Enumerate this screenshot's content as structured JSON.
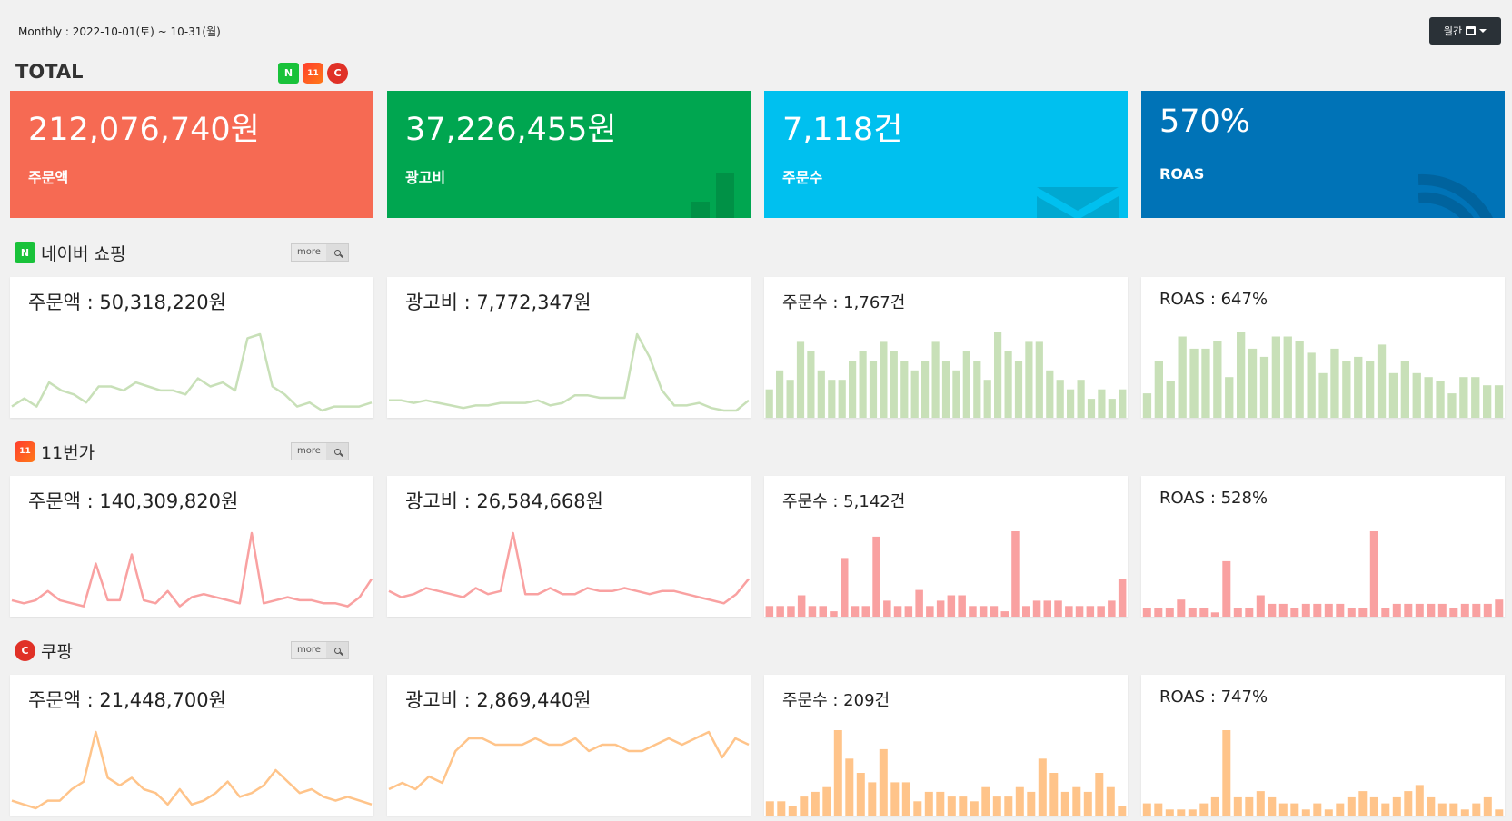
{
  "header": {
    "period": "Monthly : 2022-10-01(토) ~ 10-31(월)",
    "period_button": "월간"
  },
  "total": {
    "title": "TOTAL",
    "channel_badges": [
      "N",
      "11",
      "C"
    ],
    "kpis": [
      {
        "value": "212,076,740원",
        "label": "주문액",
        "color": "#f66a53",
        "icon": "users-icon"
      },
      {
        "value": "37,226,455원",
        "label": "광고비",
        "color": "#00a650",
        "icon": "bar-chart-icon"
      },
      {
        "value": "7,118건",
        "label": "주문수",
        "color": "#00c0ef",
        "icon": "envelope-icon"
      },
      {
        "value": "570%",
        "label": "ROAS",
        "color": "#0073b7",
        "icon": "rss-icon"
      }
    ]
  },
  "more_label": "more",
  "channels": [
    {
      "name": "네이버 쇼핑",
      "badge": "N",
      "chart_color": "#c8e0b8",
      "cards": [
        {
          "title": "주문액 : 50,318,220원",
          "type": "line",
          "values": [
            1,
            3,
            1,
            7,
            5,
            4,
            2,
            6,
            6,
            5,
            7,
            6,
            5,
            5,
            4,
            8,
            6,
            7,
            5,
            18,
            19,
            6,
            4,
            1,
            2,
            0,
            1,
            1,
            1,
            2
          ]
        },
        {
          "title": "광고비 : 7,772,347원",
          "type": "line",
          "values": [
            4,
            4,
            3,
            4,
            3,
            2,
            1,
            2,
            2,
            3,
            3,
            3,
            4,
            2,
            3,
            6,
            6,
            5,
            5,
            5,
            30,
            21,
            8,
            2,
            2,
            3,
            1,
            0,
            0,
            4
          ]
        },
        {
          "title": "주문수 : 1,767건",
          "type": "bar",
          "values": [
            3,
            5,
            4,
            8,
            7,
            5,
            4,
            4,
            6,
            7,
            6,
            8,
            7,
            6,
            5,
            6,
            8,
            6,
            5,
            7,
            6,
            4,
            9,
            7,
            6,
            8,
            8,
            5,
            4,
            3,
            4,
            2,
            3,
            2,
            3
          ]
        },
        {
          "title": "ROAS : 647%",
          "type": "bar",
          "values": [
            6,
            14,
            9,
            20,
            17,
            17,
            19,
            10,
            21,
            17,
            15,
            20,
            20,
            19,
            16,
            11,
            17,
            14,
            15,
            14,
            18,
            11,
            14,
            11,
            10,
            9,
            6,
            10,
            10,
            8,
            8
          ]
        }
      ]
    },
    {
      "name": "11번가",
      "badge": "11",
      "chart_color": "#f9a1a1",
      "cards": [
        {
          "title": "주문액 : 140,309,820원",
          "type": "line",
          "values": [
            3,
            2,
            3,
            6,
            3,
            2,
            1,
            15,
            3,
            3,
            18,
            3,
            2,
            6,
            1,
            4,
            5,
            4,
            3,
            2,
            25,
            2,
            3,
            4,
            3,
            3,
            2,
            2,
            1,
            4,
            10
          ]
        },
        {
          "title": "광고비 : 26,584,668원",
          "type": "line",
          "values": [
            6,
            4,
            5,
            7,
            6,
            5,
            4,
            7,
            5,
            6,
            25,
            5,
            5,
            7,
            5,
            5,
            7,
            6,
            6,
            7,
            6,
            5,
            6,
            6,
            5,
            4,
            3,
            2,
            5,
            10
          ]
        },
        {
          "title": "주문수 : 5,142건",
          "type": "bar",
          "values": [
            2,
            2,
            2,
            4,
            2,
            2,
            1,
            11,
            2,
            2,
            15,
            3,
            2,
            2,
            5,
            2,
            3,
            4,
            4,
            2,
            2,
            2,
            1,
            16,
            2,
            3,
            3,
            3,
            2,
            2,
            2,
            2,
            3,
            7
          ]
        },
        {
          "title": "ROAS : 528%",
          "type": "bar",
          "values": [
            2,
            2,
            2,
            4,
            2,
            2,
            1,
            13,
            2,
            2,
            5,
            3,
            3,
            2,
            3,
            3,
            3,
            3,
            2,
            2,
            20,
            2,
            3,
            3,
            3,
            3,
            3,
            2,
            3,
            3,
            3,
            4
          ]
        }
      ]
    },
    {
      "name": "쿠팡",
      "badge": "C",
      "chart_color": "#ffc48a",
      "cards": [
        {
          "title": "주문액 : 21,448,700원",
          "type": "line",
          "values": [
            2,
            1,
            0,
            2,
            2,
            5,
            7,
            20,
            8,
            6,
            8,
            5,
            4,
            1,
            5,
            1,
            2,
            4,
            7,
            3,
            4,
            6,
            10,
            7,
            4,
            5,
            3,
            2,
            3,
            2,
            1
          ]
        },
        {
          "title": "광고비 : 2,869,440원",
          "type": "line",
          "values": [
            3,
            4,
            3,
            5,
            4,
            9,
            11,
            11,
            10,
            10,
            10,
            11,
            10,
            10,
            11,
            9,
            10,
            10,
            9,
            9,
            10,
            11,
            10,
            11,
            12,
            8,
            11,
            10
          ]
        },
        {
          "title": "주문수 : 209건",
          "type": "bar",
          "values": [
            3,
            3,
            2,
            4,
            5,
            6,
            18,
            12,
            9,
            7,
            14,
            7,
            7,
            3,
            5,
            5,
            4,
            4,
            3,
            6,
            4,
            4,
            6,
            5,
            12,
            9,
            5,
            6,
            5,
            9,
            6,
            2
          ]
        },
        {
          "title": "ROAS : 747%",
          "type": "bar",
          "values": [
            2,
            2,
            1,
            1,
            1,
            2,
            3,
            14,
            3,
            3,
            4,
            3,
            2,
            2,
            1,
            2,
            1,
            2,
            3,
            4,
            3,
            2,
            3,
            4,
            5,
            3,
            2,
            2,
            1,
            2,
            3,
            1
          ]
        }
      ]
    }
  ]
}
